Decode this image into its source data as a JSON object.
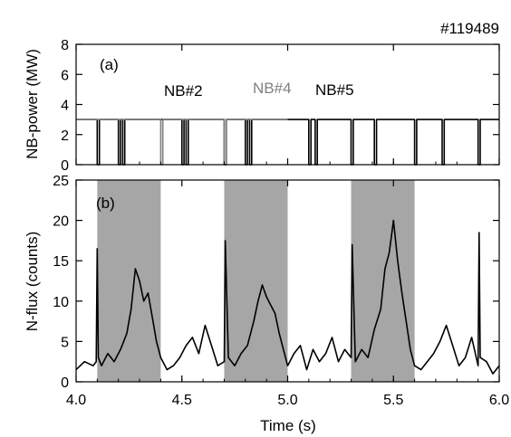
{
  "shot_label": "#119489",
  "chart_data": [
    {
      "type": "line",
      "panel": "(a)",
      "ylabel": "NB-power (MW)",
      "xlabel": "",
      "xlim": [
        4.0,
        6.0
      ],
      "ylim": [
        0,
        8
      ],
      "xticks": [
        "4.0",
        "4.5",
        "5.0",
        "5.5",
        "6.0"
      ],
      "yticks": [
        "0",
        "2",
        "4",
        "6",
        "8"
      ],
      "grid": false,
      "annotations": [
        {
          "text": "NB#2",
          "color": "#000000"
        },
        {
          "text": "NB#4",
          "color": "#808080"
        },
        {
          "text": "NB#5",
          "color": "#000000"
        }
      ],
      "series": [
        {
          "label": "NB#2",
          "color": "#000000",
          "x": [
            4.0,
            4.1,
            4.1,
            4.11,
            4.11,
            4.2,
            4.2,
            4.21,
            4.21,
            4.22,
            4.22,
            4.23,
            4.23,
            4.5,
            4.5,
            4.51,
            4.51,
            4.52,
            4.52,
            4.53,
            4.53,
            4.7,
            4.7,
            4.71,
            4.71,
            4.8,
            4.8,
            4.81,
            4.81,
            4.82,
            4.82,
            4.83,
            4.83,
            5.0
          ],
          "y": [
            3.0,
            3.0,
            0,
            0,
            3.0,
            3.0,
            0,
            0,
            3.0,
            3.0,
            0,
            0,
            3.0,
            3.0,
            0,
            0,
            3.0,
            3.0,
            0,
            0,
            3.0,
            3.0,
            0,
            0,
            3.0,
            3.0,
            0,
            0,
            3.0,
            3.0,
            0,
            0,
            3.0,
            3.0
          ]
        },
        {
          "label": "NB#4",
          "color": "#808080",
          "x": [
            4.0,
            4.4,
            4.4,
            4.41,
            4.41,
            4.7,
            4.7,
            4.71,
            4.71,
            5.0
          ],
          "y": [
            3.0,
            3.0,
            0,
            0,
            3.0,
            3.0,
            0,
            0,
            3.0,
            3.0
          ]
        },
        {
          "label": "NB#5",
          "color": "#000000",
          "x": [
            5.0,
            5.1,
            5.1,
            5.11,
            5.11,
            5.13,
            5.13,
            5.14,
            5.14,
            5.3,
            5.3,
            5.31,
            5.31,
            5.41,
            5.41,
            5.42,
            5.42,
            5.6,
            5.6,
            5.61,
            5.61,
            5.73,
            5.73,
            5.74,
            5.74,
            5.9,
            5.9,
            5.91,
            5.91,
            6.0
          ],
          "y": [
            3.0,
            3.0,
            0,
            0,
            3.0,
            3.0,
            0,
            0,
            3.0,
            3.0,
            0,
            0,
            3.0,
            3.0,
            0,
            0,
            3.0,
            3.0,
            0,
            0,
            3.0,
            3.0,
            0,
            0,
            3.0,
            3.0,
            0,
            0,
            3.0,
            3.0
          ]
        }
      ]
    },
    {
      "type": "line",
      "panel": "(b)",
      "ylabel": "N-flux (counts)",
      "xlabel": "Time (s)",
      "xlim": [
        4.0,
        6.0
      ],
      "ylim": [
        0,
        25
      ],
      "xticks": [
        "4.0",
        "4.5",
        "5.0",
        "5.5",
        "6.0"
      ],
      "yticks": [
        "0",
        "5",
        "10",
        "15",
        "20",
        "25"
      ],
      "grid": false,
      "shaded_intervals": [
        [
          4.1,
          4.4
        ],
        [
          4.7,
          5.0
        ],
        [
          5.3,
          5.6
        ]
      ],
      "shade_color": "#a6a6a6",
      "series": [
        {
          "color": "#000000",
          "x": [
            4.0,
            4.04,
            4.08,
            4.095,
            4.1,
            4.105,
            4.12,
            4.15,
            4.18,
            4.21,
            4.24,
            4.26,
            4.28,
            4.3,
            4.32,
            4.34,
            4.36,
            4.38,
            4.4,
            4.43,
            4.46,
            4.49,
            4.52,
            4.55,
            4.58,
            4.61,
            4.64,
            4.67,
            4.7,
            4.705,
            4.72,
            4.75,
            4.78,
            4.81,
            4.84,
            4.86,
            4.88,
            4.9,
            4.92,
            4.94,
            4.96,
            4.98,
            5.0,
            5.03,
            5.06,
            5.09,
            5.12,
            5.15,
            5.18,
            5.21,
            5.24,
            5.27,
            5.3,
            5.305,
            5.32,
            5.35,
            5.38,
            5.41,
            5.44,
            5.46,
            5.48,
            5.5,
            5.52,
            5.54,
            5.56,
            5.58,
            5.6,
            5.63,
            5.66,
            5.69,
            5.72,
            5.75,
            5.78,
            5.81,
            5.84,
            5.87,
            5.9,
            5.905,
            5.91,
            5.94,
            5.97,
            6.0
          ],
          "y": [
            1.5,
            2.5,
            2.0,
            2.5,
            16.5,
            3.0,
            2.0,
            3.5,
            2.5,
            4.0,
            6.0,
            9.0,
            14.0,
            12.5,
            10.0,
            11.0,
            8.0,
            5.0,
            3.0,
            1.5,
            2.0,
            3.0,
            4.5,
            5.5,
            3.5,
            7.0,
            4.5,
            2.0,
            2.5,
            17.5,
            3.0,
            2.0,
            3.5,
            4.5,
            7.5,
            10.0,
            12.0,
            10.5,
            9.5,
            8.5,
            6.0,
            4.0,
            2.0,
            3.5,
            4.5,
            1.5,
            4.0,
            2.5,
            3.5,
            5.5,
            2.5,
            4.0,
            3.0,
            17.0,
            2.5,
            4.0,
            3.0,
            6.5,
            9.0,
            14.0,
            16.0,
            20.0,
            15.0,
            11.0,
            7.5,
            4.0,
            2.0,
            1.5,
            2.5,
            3.5,
            5.0,
            7.0,
            4.5,
            2.0,
            3.0,
            5.5,
            2.0,
            18.5,
            3.0,
            2.5,
            1.0,
            2.0
          ]
        }
      ]
    }
  ]
}
